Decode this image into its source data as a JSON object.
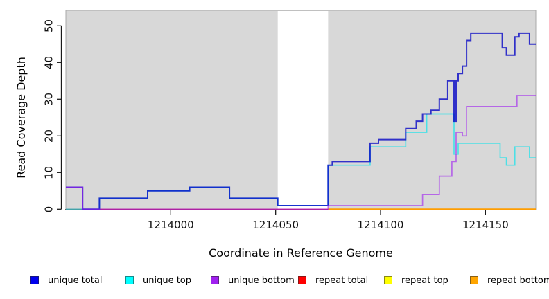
{
  "chart_data": {
    "type": "step-line",
    "title": "",
    "xlabel": "Coordinate in Reference Genome",
    "ylabel": "Read Coverage Depth",
    "x_domain": [
      1213950,
      1214174
    ],
    "ylim": [
      0,
      52
    ],
    "x_ticks": [
      1214000,
      1214050,
      1214100,
      1214150
    ],
    "y_ticks": [
      0,
      10,
      20,
      30,
      40,
      50
    ],
    "grid": "off",
    "plot_bg": "#d8d8d8",
    "plot_border": "#a9a9a9",
    "gap_region": {
      "x_start": 1214051,
      "x_end": 1214075,
      "color": "#ffffff"
    },
    "legend_position": "bottom",
    "series": [
      {
        "name": "repeat total",
        "color": "#ff0000",
        "opacity": 0.62,
        "width": 1.5,
        "x_end": 1214174,
        "points": [
          [
            1213950,
            0
          ]
        ]
      },
      {
        "name": "repeat top",
        "color": "#ffff00",
        "opacity": 0.9,
        "width": 1.5,
        "x_end": 1214174,
        "points": [
          [
            1214075,
            0
          ]
        ]
      },
      {
        "name": "repeat bottom",
        "color": "#ff9900",
        "opacity": 0.95,
        "width": 2,
        "x_end": 1214174,
        "points": [
          [
            1214075,
            0
          ]
        ]
      },
      {
        "name": "unique top",
        "color": "#00e5ee",
        "opacity": 0.65,
        "width": 1.7,
        "x_end": 1214174,
        "points": [
          [
            1213950,
            0
          ],
          [
            1213966,
            3
          ],
          [
            1213989,
            5
          ],
          [
            1214009,
            6
          ],
          [
            1214028,
            3
          ],
          [
            1214051,
            1
          ],
          [
            1214075,
            12
          ],
          [
            1214095,
            17
          ],
          [
            1214112,
            21
          ],
          [
            1214122,
            26
          ],
          [
            1214135,
            15
          ],
          [
            1214137,
            18
          ],
          [
            1214157,
            14
          ],
          [
            1214160,
            12
          ],
          [
            1214164,
            17
          ],
          [
            1214171,
            14
          ]
        ]
      },
      {
        "name": "unique total",
        "color": "#0000c4",
        "opacity": 0.78,
        "width": 2,
        "x_end": 1214174,
        "points": [
          [
            1213950,
            6
          ],
          [
            1213958,
            0
          ],
          [
            1213966,
            3
          ],
          [
            1213989,
            5
          ],
          [
            1214009,
            6
          ],
          [
            1214028,
            3
          ],
          [
            1214051,
            1
          ],
          [
            1214075,
            12
          ],
          [
            1214077,
            13
          ],
          [
            1214095,
            18
          ],
          [
            1214099,
            19
          ],
          [
            1214112,
            22
          ],
          [
            1214117,
            24
          ],
          [
            1214120,
            26
          ],
          [
            1214124,
            27
          ],
          [
            1214128,
            30
          ],
          [
            1214132,
            35
          ],
          [
            1214135,
            24
          ],
          [
            1214136,
            35
          ],
          [
            1214137,
            37
          ],
          [
            1214139,
            39
          ],
          [
            1214141,
            46
          ],
          [
            1214143,
            48
          ],
          [
            1214158,
            44
          ],
          [
            1214160,
            42
          ],
          [
            1214164,
            47
          ],
          [
            1214166,
            48
          ],
          [
            1214171,
            45
          ]
        ]
      },
      {
        "name": "unique bottom",
        "color": "#a020f0",
        "opacity": 0.62,
        "width": 1.7,
        "x_end": 1214174,
        "points": [
          [
            1213950,
            6
          ],
          [
            1213958,
            0
          ],
          [
            1214075,
            1
          ],
          [
            1214120,
            4
          ],
          [
            1214128,
            9
          ],
          [
            1214134,
            13
          ],
          [
            1214136,
            21
          ],
          [
            1214139,
            20
          ],
          [
            1214141,
            28
          ],
          [
            1214165,
            31
          ]
        ]
      }
    ],
    "legend": [
      {
        "label": "unique total",
        "color": "#0000ee"
      },
      {
        "label": "unique top",
        "color": "#00ffff"
      },
      {
        "label": "unique bottom",
        "color": "#a020f0"
      },
      {
        "label": "repeat total",
        "color": "#ff0000"
      },
      {
        "label": "repeat top",
        "color": "#ffff00"
      },
      {
        "label": "repeat bottom",
        "color": "#ffa500"
      }
    ]
  }
}
